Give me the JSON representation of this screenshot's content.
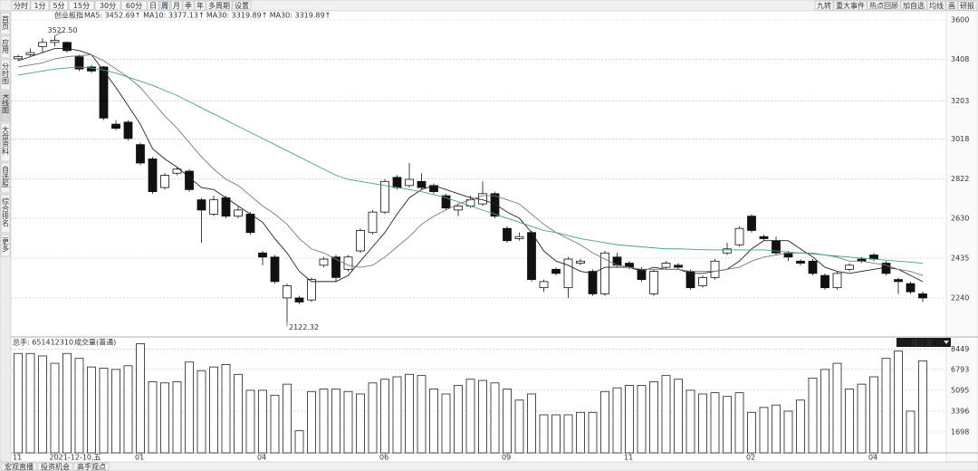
{
  "toolbar": {
    "periods": [
      "分时",
      "1分",
      "5分",
      "15分",
      "30分",
      "60分",
      "日",
      "周",
      "月",
      "季",
      "年",
      "多周期",
      "设置"
    ],
    "active": 7,
    "tools": [
      "九转",
      "重大事件",
      "热点回顾",
      "加自选",
      "均线",
      "画",
      "研报"
    ]
  },
  "sidebar": [
    "首页",
    "应用",
    "分时图",
    "K线图",
    "大盘资料",
    "自选股",
    "综合排名",
    "更多"
  ],
  "indicator": {
    "name": "创业板指",
    "extra_label": "MA30: 3319.89↑",
    "extra_color": "#19b5c8"
  },
  "chart_data": [
    {
      "type": "candlestick",
      "categories": [
        "11",
        null,
        null,
        "2021-12-10,五",
        null,
        null,
        null,
        null,
        null,
        null,
        "01",
        null,
        null,
        null,
        null,
        null,
        null,
        null,
        null,
        null,
        "04",
        null,
        null,
        null,
        null,
        null,
        null,
        null,
        null,
        null,
        "06",
        null,
        null,
        null,
        null,
        null,
        null,
        null,
        null,
        null,
        "09",
        null,
        null,
        null,
        null,
        null,
        null,
        null,
        null,
        null,
        "11",
        null,
        null,
        null,
        null,
        null,
        null,
        null,
        null,
        null,
        "02",
        null,
        null,
        null,
        null,
        null,
        null,
        null,
        null,
        null,
        "04",
        null,
        null,
        null,
        null
      ],
      "open": [
        3410,
        3430,
        3470,
        3490,
        3490,
        3420,
        3370,
        3370,
        3090,
        3100,
        2990,
        2920,
        2780,
        2850,
        2860,
        2720,
        2650,
        2730,
        2640,
        2650,
        2460,
        2440,
        2240,
        2240,
        2230,
        2400,
        2440,
        2380,
        2470,
        2560,
        2660,
        2830,
        2790,
        2810,
        2790,
        2740,
        2670,
        2690,
        2700,
        2750,
        2580,
        2530,
        2560,
        2290,
        2380,
        2290,
        2410,
        2370,
        2260,
        2440,
        2410,
        2380,
        2260,
        2390,
        2400,
        2370,
        2300,
        2340,
        2460,
        2500,
        2640,
        2540,
        2520,
        2460,
        2420,
        2420,
        2350,
        2290,
        2380,
        2430,
        2450,
        2410,
        2330,
        2310,
        2260
      ],
      "high": [
        3430,
        3460,
        3510,
        3522.5,
        3495,
        3430,
        3380,
        3375,
        3110,
        3110,
        3000,
        2930,
        2850,
        2880,
        2870,
        2730,
        2740,
        2740,
        2690,
        2660,
        2470,
        2450,
        2310,
        2250,
        2340,
        2440,
        2450,
        2450,
        2580,
        2670,
        2820,
        2840,
        2900,
        2850,
        2800,
        2750,
        2700,
        2740,
        2810,
        2760,
        2590,
        2560,
        2570,
        2330,
        2390,
        2440,
        2430,
        2380,
        2470,
        2460,
        2420,
        2390,
        2380,
        2420,
        2410,
        2380,
        2350,
        2430,
        2510,
        2590,
        2650,
        2550,
        2540,
        2470,
        2430,
        2430,
        2360,
        2370,
        2410,
        2440,
        2460,
        2420,
        2340,
        2320,
        2270
      ],
      "low": [
        3400,
        3420,
        3440,
        3470,
        3440,
        3350,
        3340,
        3110,
        3060,
        3010,
        2890,
        2750,
        2770,
        2840,
        2760,
        2510,
        2640,
        2630,
        2630,
        2550,
        2400,
        2310,
        2122.32,
        2210,
        2220,
        2390,
        2320,
        2370,
        2460,
        2550,
        2650,
        2770,
        2780,
        2770,
        2750,
        2670,
        2640,
        2680,
        2690,
        2630,
        2510,
        2520,
        2320,
        2270,
        2350,
        2240,
        2400,
        2250,
        2250,
        2390,
        2380,
        2320,
        2250,
        2380,
        2380,
        2280,
        2290,
        2330,
        2450,
        2490,
        2560,
        2520,
        2450,
        2420,
        2400,
        2350,
        2280,
        2280,
        2370,
        2410,
        2420,
        2350,
        2260,
        2260,
        2220
      ],
      "close": [
        3420,
        3440,
        3490,
        3500,
        3450,
        3360,
        3350,
        3120,
        3070,
        3020,
        2900,
        2760,
        2840,
        2870,
        2770,
        2670,
        2720,
        2640,
        2670,
        2560,
        2440,
        2320,
        2300,
        2220,
        2330,
        2430,
        2340,
        2440,
        2570,
        2660,
        2810,
        2780,
        2820,
        2780,
        2760,
        2680,
        2690,
        2720,
        2750,
        2640,
        2520,
        2540,
        2330,
        2320,
        2360,
        2430,
        2420,
        2260,
        2460,
        2400,
        2390,
        2330,
        2370,
        2410,
        2390,
        2290,
        2340,
        2420,
        2480,
        2580,
        2570,
        2530,
        2460,
        2440,
        2410,
        2360,
        2290,
        2360,
        2400,
        2420,
        2430,
        2360,
        2320,
        2270,
        2240
      ],
      "series": [
        {
          "name": "MA5: 3452.69↑",
          "color": "#222222",
          "values": [
            3400,
            3420,
            3440,
            3460,
            3460,
            3450,
            3430,
            3350,
            3270,
            3180,
            3090,
            2970,
            2920,
            2880,
            2830,
            2780,
            2770,
            2730,
            2690,
            2650,
            2610,
            2530,
            2460,
            2370,
            2320,
            2320,
            2320,
            2350,
            2420,
            2490,
            2560,
            2650,
            2730,
            2770,
            2790,
            2770,
            2750,
            2730,
            2720,
            2700,
            2660,
            2630,
            2560,
            2470,
            2420,
            2400,
            2370,
            2360,
            2390,
            2390,
            2390,
            2370,
            2390,
            2380,
            2380,
            2360,
            2360,
            2370,
            2380,
            2420,
            2480,
            2520,
            2520,
            2520,
            2480,
            2440,
            2390,
            2370,
            2360,
            2370,
            2380,
            2390,
            2380,
            2350,
            2320
          ]
        },
        {
          "name": "MA10: 3377.13↑",
          "color": "#7a7a7a",
          "values": [
            3370,
            3380,
            3390,
            3410,
            3420,
            3425,
            3430,
            3400,
            3360,
            3320,
            3270,
            3200,
            3130,
            3070,
            3000,
            2930,
            2870,
            2820,
            2790,
            2740,
            2690,
            2650,
            2600,
            2530,
            2480,
            2460,
            2430,
            2400,
            2390,
            2400,
            2440,
            2490,
            2540,
            2600,
            2640,
            2670,
            2700,
            2720,
            2740,
            2740,
            2720,
            2700,
            2650,
            2600,
            2560,
            2530,
            2500,
            2460,
            2430,
            2400,
            2390,
            2380,
            2380,
            2380,
            2380,
            2370,
            2370,
            2370,
            2380,
            2390,
            2420,
            2440,
            2450,
            2460,
            2460,
            2460,
            2450,
            2440,
            2420,
            2420,
            2410,
            2400,
            2380,
            2370,
            2350
          ]
        },
        {
          "name": "MA30: 3319.89↑",
          "color": "#4a9e8f",
          "values": [
            3330,
            3340,
            3350,
            3360,
            3365,
            3370,
            3365,
            3355,
            3340,
            3320,
            3300,
            3280,
            3255,
            3230,
            3200,
            3170,
            3140,
            3110,
            3080,
            3050,
            3020,
            2990,
            2960,
            2930,
            2900,
            2870,
            2840,
            2820,
            2810,
            2800,
            2790,
            2780,
            2770,
            2760,
            2745,
            2730,
            2710,
            2690,
            2670,
            2650,
            2630,
            2610,
            2590,
            2570,
            2560,
            2545,
            2530,
            2520,
            2510,
            2500,
            2495,
            2490,
            2485,
            2480,
            2480,
            2478,
            2476,
            2475,
            2475,
            2475,
            2475,
            2475,
            2470,
            2465,
            2460,
            2455,
            2450,
            2445,
            2440,
            2435,
            2430,
            2425,
            2420,
            2415,
            2410
          ]
        }
      ],
      "annotations": [
        "3522.50",
        "2122.32"
      ],
      "ylim": [
        2058,
        3631
      ],
      "yticks": [
        3600,
        3408,
        3203,
        3018,
        2822,
        2630,
        2435,
        2240
      ],
      "grid": true
    },
    {
      "type": "bar",
      "title": "总手: 651412310",
      "subtitle": "成交量(普通)",
      "selector": "成交量",
      "color": "#ffffff",
      "values": [
        8100,
        8100,
        7900,
        7300,
        8100,
        7700,
        7000,
        6900,
        6800,
        7100,
        8900,
        5800,
        5700,
        5800,
        7400,
        6700,
        7000,
        7200,
        6400,
        5100,
        5100,
        4700,
        5600,
        1800,
        5000,
        5200,
        5200,
        5000,
        4800,
        5700,
        6000,
        6200,
        6400,
        6300,
        5200,
        4800,
        5500,
        6000,
        5900,
        5700,
        5200,
        4300,
        4800,
        3100,
        3100,
        3100,
        3300,
        3300,
        5000,
        5300,
        5500,
        5500,
        5800,
        6300,
        6000,
        5100,
        4800,
        4900,
        4600,
        4900,
        3300,
        3700,
        3900,
        3400,
        4300,
        6100,
        6800,
        7300,
        5200,
        5600,
        6200,
        7700,
        8300,
        3400,
        7500
      ],
      "ylim": [
        0,
        9078
      ],
      "yticks": [
        8449,
        6793,
        5095,
        3396,
        1698
      ],
      "grid": true
    }
  ],
  "tabs": [
    "宏观直播",
    "投资机会",
    "高手观点"
  ]
}
